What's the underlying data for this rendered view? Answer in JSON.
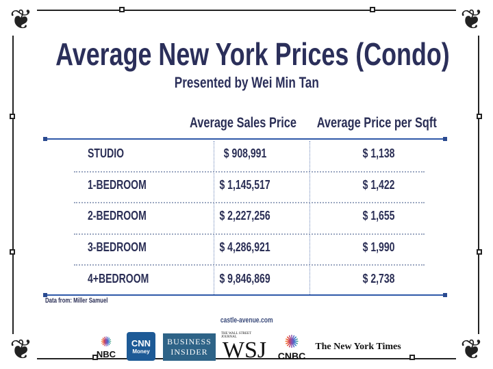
{
  "title": "Average New York Prices (Condo)",
  "subtitle": "Presented by Wei Min Tan",
  "table": {
    "headers": [
      "Average Sales Price",
      "Average Price per Sqft"
    ],
    "rows": [
      {
        "label": "STUDIO",
        "sales": "$ 908,991",
        "sqft": "$ 1,138"
      },
      {
        "label": "1-BEDROOM",
        "sales": "$ 1,145,517",
        "sqft": "$ 1,422"
      },
      {
        "label": "2-BEDROOM",
        "sales": "$ 2,227,256",
        "sqft": "$ 1,655"
      },
      {
        "label": "3-BEDROOM",
        "sales": "$ 4,286,921",
        "sqft": "$ 1,990"
      },
      {
        "label": "4+BEDROOM",
        "sales": "$ 9,846,869",
        "sqft": "$ 2,738"
      }
    ]
  },
  "source": "Data from: Miller Samuel",
  "website": "castle-avenue.com",
  "logos": {
    "nbc": "NBC",
    "cnn_top": "CNN",
    "cnn_bottom": "Money",
    "bi_top": "BUSINESS",
    "bi_bottom": "INSIDER",
    "wsj_top": "THE WALL STREET JOURNAL",
    "wsj": "WSJ",
    "cnbc": "CNBC",
    "nyt": "The New York Times"
  },
  "colors": {
    "title": "#2b2f5a",
    "rule": "#2e58a8",
    "frame": "#222222"
  }
}
